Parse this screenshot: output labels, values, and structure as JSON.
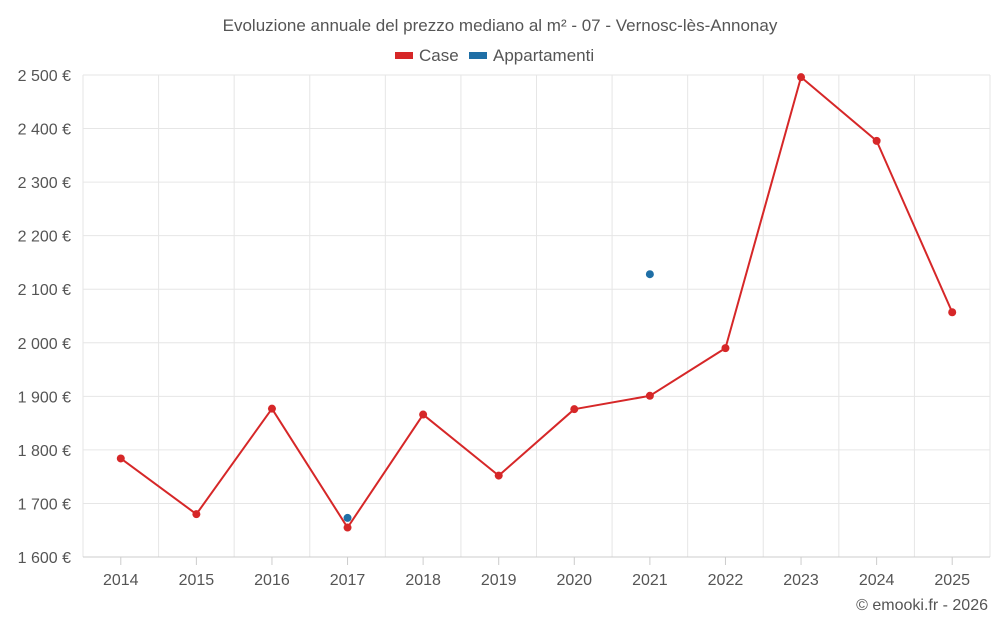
{
  "chart_data": {
    "type": "line",
    "title": "Evoluzione annuale del prezzo mediano al m² - 07 - Vernosc-lès-Annonay",
    "categories": [
      "2014",
      "2015",
      "2016",
      "2017",
      "2018",
      "2019",
      "2020",
      "2021",
      "2022",
      "2023",
      "2024",
      "2025"
    ],
    "series": [
      {
        "name": "Case",
        "color": "#d62728",
        "values": [
          1784,
          1680,
          1877,
          1655,
          1866,
          1752,
          1876,
          1901,
          1990,
          2496,
          2377,
          2057
        ]
      },
      {
        "name": "Appartamenti",
        "color": "#1f6fa6",
        "values": [
          null,
          null,
          null,
          1673,
          null,
          null,
          null,
          2128,
          null,
          null,
          null,
          null
        ]
      }
    ],
    "ylim": [
      1600,
      2500
    ],
    "yticks": [
      1600,
      1700,
      1800,
      1900,
      2000,
      2100,
      2200,
      2300,
      2400,
      2500
    ],
    "ytick_labels": [
      "1 600 €",
      "1 700 €",
      "1 800 €",
      "1 900 €",
      "2 000 €",
      "2 100 €",
      "2 200 €",
      "2 300 €",
      "2 400 €",
      "2 500 €"
    ],
    "grid": true,
    "legend_position": "top-center"
  },
  "credit": "© emooki.fr - 2026"
}
